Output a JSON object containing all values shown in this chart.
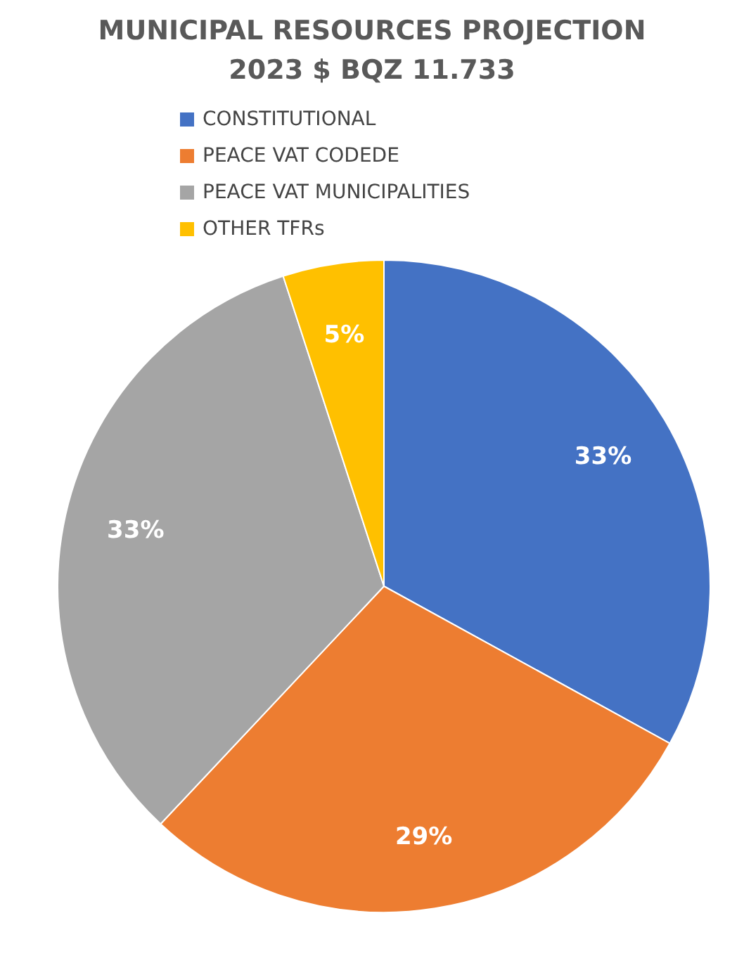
{
  "chart_data": {
    "type": "pie",
    "title": "MUNICIPAL RESOURCES PROJECTION 2023 $ BQZ 11.733",
    "categories": [
      "CONSTITUTIONAL",
      "PEACE VAT CODEDE",
      "PEACE VAT MUNICIPALITIES",
      "OTHER TFRs"
    ],
    "values": [
      33,
      29,
      33,
      5
    ],
    "colors": [
      "#4472c4",
      "#ed7d31",
      "#a5a5a5",
      "#ffc000"
    ],
    "value_labels": [
      "33%",
      "29%",
      "33%",
      "5%"
    ],
    "legend": "top"
  }
}
